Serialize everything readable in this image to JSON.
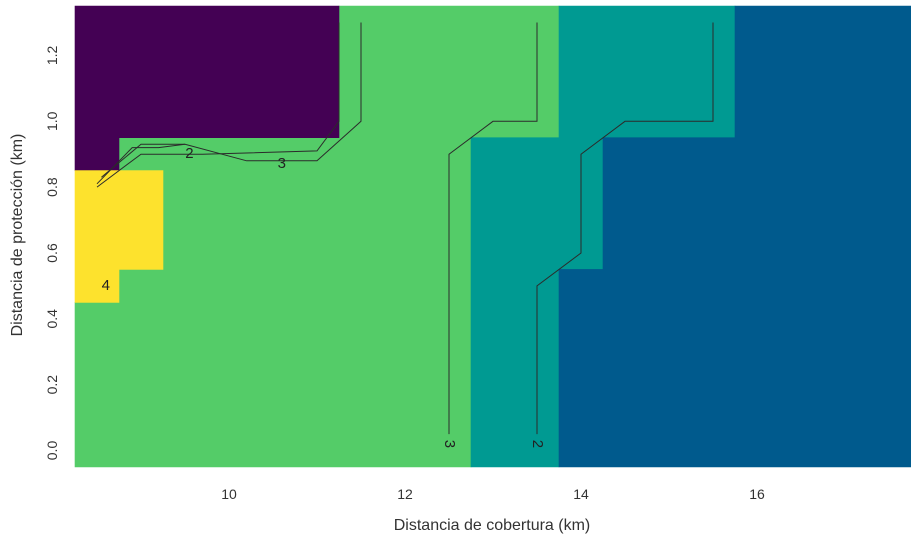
{
  "chart_data": {
    "type": "heatmap",
    "title": "",
    "xlabel": "Distancia de cobertura (km)",
    "ylabel": "Distancia de protección (km)",
    "xlim": [
      8.25,
      17.75
    ],
    "ylim": [
      -0.05,
      1.35
    ],
    "x_ticks": [
      "10",
      "12",
      "14",
      "16"
    ],
    "y_ticks": [
      "0.0",
      "0.2",
      "0.4",
      "0.6",
      "0.8",
      "1.0",
      "1.2"
    ],
    "grid": false,
    "legend": "none",
    "level_colors": {
      "1": "#440154",
      "2": "#005a8d",
      "3": "#009a92",
      "4": "#54cc68",
      "5": "#fde22d"
    },
    "regions": [
      {
        "level": 4,
        "polygon": [
          [
            8.25,
            -0.05
          ],
          [
            12.75,
            -0.05
          ],
          [
            12.75,
            0.95
          ],
          [
            13.75,
            0.95
          ],
          [
            13.75,
            1.35
          ],
          [
            11.25,
            1.35
          ],
          [
            11.25,
            0.95
          ],
          [
            8.75,
            0.95
          ],
          [
            8.75,
            0.85
          ],
          [
            9.25,
            0.85
          ],
          [
            9.25,
            0.55
          ],
          [
            8.75,
            0.55
          ],
          [
            8.75,
            0.45
          ],
          [
            8.25,
            0.45
          ]
        ]
      },
      {
        "level": 1,
        "polygon": [
          [
            8.25,
            0.85
          ],
          [
            8.75,
            0.85
          ],
          [
            8.75,
            0.95
          ],
          [
            11.25,
            0.95
          ],
          [
            11.25,
            1.35
          ],
          [
            8.25,
            1.35
          ]
        ]
      },
      {
        "level": 5,
        "polygon": [
          [
            8.25,
            0.45
          ],
          [
            8.75,
            0.45
          ],
          [
            8.75,
            0.55
          ],
          [
            9.25,
            0.55
          ],
          [
            9.25,
            0.85
          ],
          [
            8.25,
            0.85
          ]
        ]
      },
      {
        "level": 3,
        "polygon": [
          [
            12.75,
            -0.05
          ],
          [
            13.75,
            -0.05
          ],
          [
            13.75,
            0.55
          ],
          [
            14.25,
            0.55
          ],
          [
            14.25,
            0.95
          ],
          [
            15.75,
            0.95
          ],
          [
            15.75,
            1.35
          ],
          [
            13.75,
            1.35
          ],
          [
            13.75,
            0.95
          ],
          [
            12.75,
            0.95
          ]
        ]
      },
      {
        "level": 2,
        "polygon": [
          [
            13.75,
            -0.05
          ],
          [
            17.75,
            -0.05
          ],
          [
            17.75,
            1.35
          ],
          [
            15.75,
            1.35
          ],
          [
            15.75,
            0.95
          ],
          [
            14.25,
            0.95
          ],
          [
            14.25,
            0.55
          ],
          [
            13.75,
            0.55
          ]
        ]
      }
    ],
    "contours": [
      {
        "label": "3",
        "points": [
          [
            12.5,
            0.05
          ],
          [
            12.5,
            0.9
          ],
          [
            13.0,
            1.0
          ],
          [
            13.5,
            1.0
          ],
          [
            13.5,
            1.3
          ]
        ],
        "label_at": [
          12.5,
          0.02
        ],
        "label_rotate": 90
      },
      {
        "label": "2",
        "points": [
          [
            13.5,
            0.05
          ],
          [
            13.5,
            0.5
          ],
          [
            14.0,
            0.6
          ],
          [
            14.0,
            0.9
          ],
          [
            14.5,
            1.0
          ],
          [
            15.5,
            1.0
          ],
          [
            15.5,
            1.3
          ]
        ],
        "label_at": [
          13.5,
          0.02
        ],
        "label_rotate": 90
      },
      {
        "label": "2",
        "points": [
          [
            8.5,
            0.8
          ],
          [
            9.0,
            0.9
          ],
          [
            9.5,
            0.9
          ],
          [
            9.7,
            0.9
          ],
          [
            11.0,
            0.91
          ],
          [
            11.25,
            1.0
          ],
          [
            11.25,
            1.3
          ]
        ],
        "label_at": [
          9.55,
          0.9
        ],
        "label_rotate": 0
      },
      {
        "label": "3",
        "points": [
          [
            8.55,
            0.83
          ],
          [
            9.0,
            0.93
          ],
          [
            9.5,
            0.93
          ],
          [
            10.2,
            0.88
          ],
          [
            11.0,
            0.88
          ],
          [
            11.5,
            1.0
          ],
          [
            11.5,
            1.3
          ]
        ],
        "label_at": [
          10.6,
          0.87
        ],
        "label_rotate": 0
      },
      {
        "label": "",
        "points": [
          [
            8.5,
            0.81
          ],
          [
            8.9,
            0.92
          ],
          [
            9.2,
            0.92
          ],
          [
            9.5,
            0.93
          ]
        ]
      },
      {
        "label": "4",
        "points": [],
        "label_at": [
          8.6,
          0.5
        ],
        "label_rotate": 0
      }
    ]
  }
}
